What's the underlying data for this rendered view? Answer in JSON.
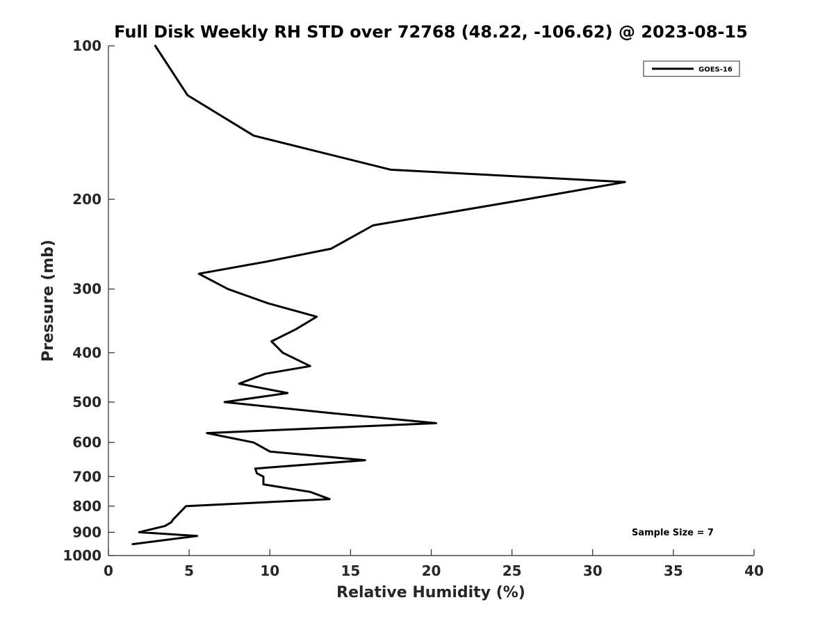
{
  "chart_data": {
    "type": "line",
    "title": "Full Disk Weekly RH STD over 72768 (48.22, -106.62) @ 2023-08-15",
    "xlabel": "Relative Humidity (%)",
    "ylabel": "Pressure (mb)",
    "xlim": [
      0,
      40
    ],
    "ylim": [
      100,
      1000
    ],
    "yscale": "log",
    "y_reversed": true,
    "xticks": [
      "0",
      "5",
      "10",
      "15",
      "20",
      "25",
      "30",
      "35",
      "40"
    ],
    "yticks": [
      "100",
      "200",
      "300",
      "400",
      "500",
      "600",
      "700",
      "800",
      "900",
      "1000"
    ],
    "grid": false,
    "legend_position": "top-right",
    "annotation": "Sample Size = 7",
    "series": [
      {
        "name": "GOES-16",
        "color": "#000000",
        "x": [
          2.9,
          4.9,
          9.0,
          17.5,
          32.0,
          25.9,
          16.4,
          13.8,
          9.8,
          5.6,
          7.4,
          9.9,
          12.9,
          11.6,
          10.1,
          10.8,
          12.5,
          9.7,
          8.1,
          11.1,
          7.2,
          13.7,
          20.3,
          6.1,
          9.0,
          10.0,
          15.9,
          9.1,
          9.2,
          9.6,
          9.6,
          12.5,
          13.7,
          4.8,
          4.4,
          4.0,
          3.9,
          3.5,
          1.9,
          5.5,
          1.5
        ],
        "y": [
          100,
          125,
          150,
          175,
          185,
          200,
          225,
          250,
          265,
          280,
          300,
          320,
          340,
          360,
          380,
          400,
          425,
          440,
          460,
          480,
          500,
          525,
          550,
          575,
          600,
          625,
          650,
          675,
          690,
          700,
          725,
          750,
          775,
          800,
          825,
          850,
          860,
          875,
          900,
          915,
          950
        ]
      }
    ]
  }
}
